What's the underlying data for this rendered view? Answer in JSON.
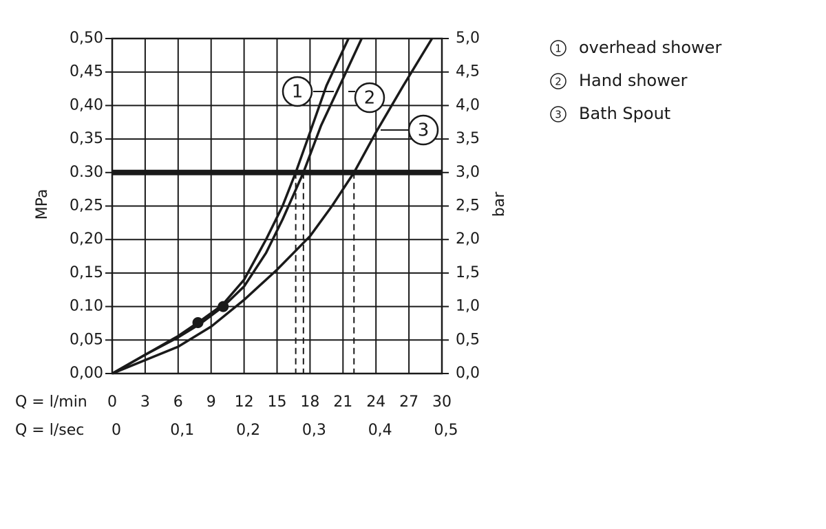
{
  "chart_data": {
    "type": "line",
    "y_label": "MPa",
    "y2_label": "bar",
    "x_label": "Q = l/min",
    "x2_label": "Q = l/sec",
    "xlim": [
      0,
      30
    ],
    "xticks": [
      0,
      3,
      6,
      9,
      12,
      15,
      18,
      21,
      24,
      27,
      30
    ],
    "x2lim": [
      0,
      0.5
    ],
    "x2ticks": [
      0,
      {
        "value": 0.1,
        "label": "0,1"
      },
      {
        "value": 0.2,
        "label": "0,2"
      },
      {
        "value": 0.3,
        "label": "0,3"
      },
      {
        "value": 0.4,
        "label": "0,4"
      },
      {
        "value": 0.5,
        "label": "0,5"
      }
    ],
    "ylim": [
      0,
      0.5
    ],
    "yticks": [
      {
        "value": 0,
        "label": "0,00"
      },
      {
        "value": 0.05,
        "label": "0,05"
      },
      {
        "value": 0.1,
        "label": "0.10"
      },
      {
        "value": 0.15,
        "label": "0,15"
      },
      {
        "value": 0.2,
        "label": "0,20"
      },
      {
        "value": 0.25,
        "label": "0,25"
      },
      {
        "value": 0.3,
        "label": "0.30"
      },
      {
        "value": 0.35,
        "label": "0,35"
      },
      {
        "value": 0.4,
        "label": "0,40"
      },
      {
        "value": 0.45,
        "label": "0,45"
      },
      {
        "value": 0.5,
        "label": "0,50"
      }
    ],
    "y2lim": [
      0,
      5
    ],
    "y2ticks": [
      {
        "value": 0,
        "label": "0,0"
      },
      {
        "value": 0.5,
        "label": "0,5"
      },
      {
        "value": 1,
        "label": "1,0"
      },
      {
        "value": 1.5,
        "label": "1,5"
      },
      {
        "value": 2,
        "label": "2,0"
      },
      {
        "value": 2.5,
        "label": "2,5"
      },
      {
        "value": 3,
        "label": "3,0"
      },
      {
        "value": 3.5,
        "label": "3,5"
      },
      {
        "value": 4,
        "label": "4,0"
      },
      {
        "value": 4.5,
        "label": "4,5"
      },
      {
        "value": 5,
        "label": "5,0"
      }
    ],
    "grid": true,
    "reference_y": 0.3,
    "series": [
      {
        "name": "overhead shower",
        "marker": "1",
        "color": "#1a1a1a",
        "x": [
          0,
          3,
          6,
          7.8,
          10,
          12,
          14,
          15.5,
          16.7,
          18,
          19.5,
          21.5
        ],
        "values": [
          0,
          0.028,
          0.056,
          0.076,
          0.102,
          0.14,
          0.2,
          0.25,
          0.3,
          0.36,
          0.43,
          0.5
        ],
        "reference_x": 16.7
      },
      {
        "name": "Hand shower",
        "marker": "2",
        "color": "#1a1a1a",
        "x": [
          0,
          3,
          6,
          8,
          10.1,
          12,
          14,
          15.5,
          17.4,
          19,
          21,
          22.7
        ],
        "values": [
          0,
          0.028,
          0.054,
          0.074,
          0.1,
          0.13,
          0.18,
          0.23,
          0.3,
          0.37,
          0.44,
          0.5
        ],
        "reference_x": 17.4
      },
      {
        "name": "Bath Spout",
        "marker": "3",
        "color": "#1a1a1a",
        "x": [
          0,
          3,
          6,
          9,
          12,
          15,
          18,
          20,
          22,
          24,
          26.5,
          29.1
        ],
        "values": [
          0,
          0.02,
          0.04,
          0.07,
          0.11,
          0.155,
          0.205,
          0.25,
          0.3,
          0.36,
          0.43,
          0.5
        ],
        "reference_x": 22.0
      }
    ]
  }
}
